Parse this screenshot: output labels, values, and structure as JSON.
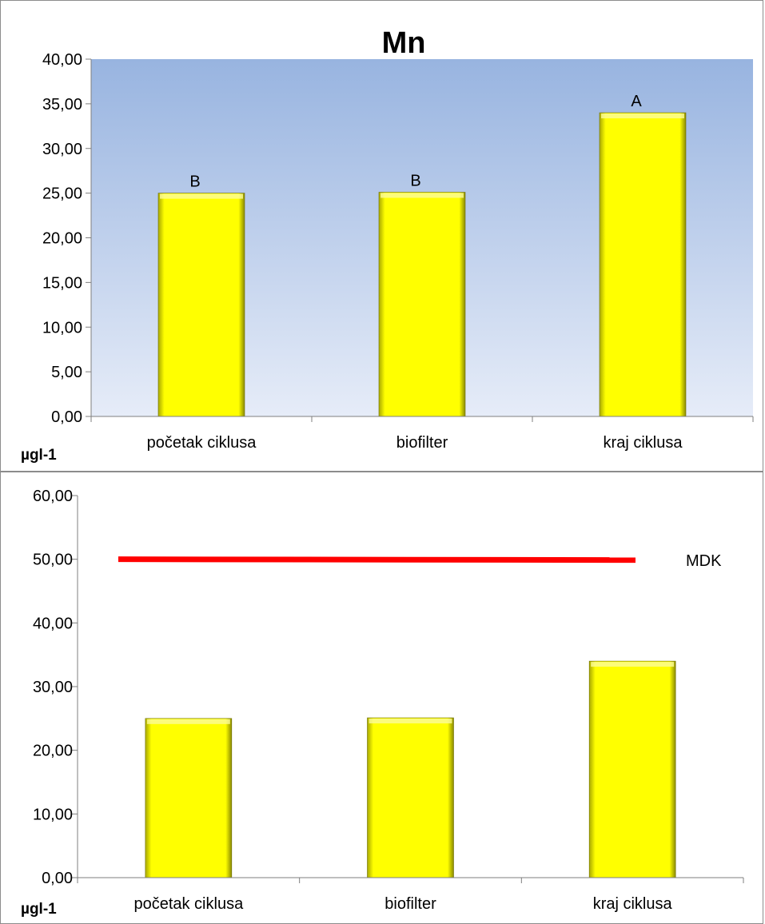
{
  "chart_data": [
    {
      "type": "bar",
      "title": "Mn",
      "categories": [
        "početak ciklusa",
        "biofilter",
        "kraj ciklusa"
      ],
      "values": [
        25.0,
        25.1,
        34.0
      ],
      "data_labels": [
        "B",
        "B",
        "A"
      ],
      "ylabel": "µgl-1",
      "ylim": [
        0,
        40
      ],
      "yticks": [
        "0,00",
        "5,00",
        "10,00",
        "15,00",
        "20,00",
        "25,00",
        "30,00",
        "35,00",
        "40,00"
      ],
      "bar_color": "#ffff00",
      "background": "gradient-blue",
      "grid": false
    },
    {
      "type": "bar",
      "categories": [
        "početak ciklusa",
        "biofilter",
        "kraj ciklusa"
      ],
      "values": [
        25.0,
        25.1,
        34.0
      ],
      "ylabel": "µgl-1",
      "ylim": [
        0,
        60
      ],
      "yticks": [
        "0,00",
        "10,00",
        "20,00",
        "30,00",
        "40,00",
        "50,00",
        "60,00"
      ],
      "bar_color": "#ffff00",
      "reference_line": {
        "label": "MDK",
        "value": 50,
        "color": "#ff0000"
      },
      "grid": false
    }
  ]
}
